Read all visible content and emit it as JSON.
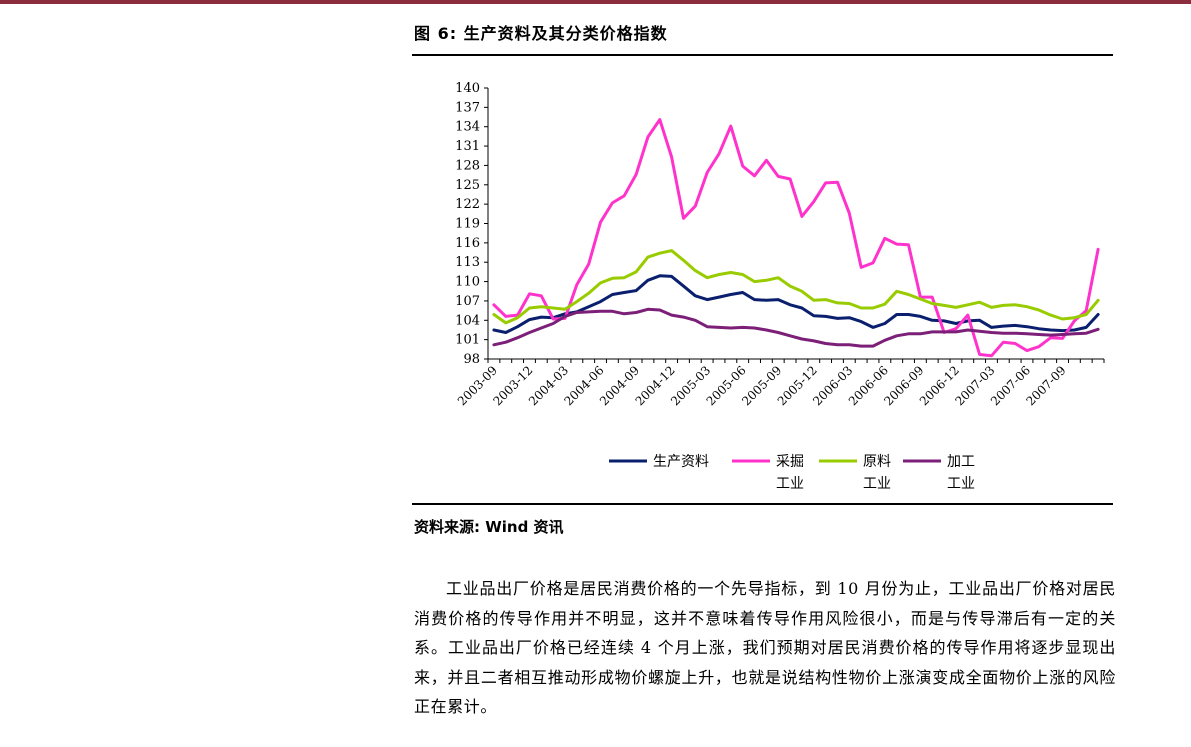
{
  "figure_title": "图 6: 生产资料及其分类价格指数",
  "source_line": "资料来源: Wind 资讯",
  "paragraph": "工业品出厂价格是居民消费价格的一个先导指标，到 10 月份为止，工业品出厂价格对居民消费价格的传导作用并不明显，这并不意味着传导作用风险很小，而是与传导滞后有一定的关系。工业品出厂价格已经连续 4 个月上涨，我们预期对居民消费价格的传导作用将逐步显现出来，并且二者相互推动形成物价螺旋上升，也就是说结构性物价上涨演变成全面物价上涨的风险正在累计。",
  "colors": {
    "top_rule": "#8b2d3c"
  },
  "chart_data": {
    "type": "line",
    "title": "",
    "xlabel": "",
    "ylabel": "",
    "ylim": [
      98,
      140
    ],
    "yticks": [
      98,
      101,
      104,
      107,
      110,
      113,
      116,
      119,
      122,
      125,
      128,
      131,
      134,
      137,
      140
    ],
    "x": [
      "2003-09",
      "2003-10",
      "2003-11",
      "2003-12",
      "2004-01",
      "2004-02",
      "2004-03",
      "2004-04",
      "2004-05",
      "2004-06",
      "2004-07",
      "2004-08",
      "2004-09",
      "2004-10",
      "2004-11",
      "2004-12",
      "2005-01",
      "2005-02",
      "2005-03",
      "2005-04",
      "2005-05",
      "2005-06",
      "2005-07",
      "2005-08",
      "2005-09",
      "2005-10",
      "2005-11",
      "2005-12",
      "2006-01",
      "2006-02",
      "2006-03",
      "2006-04",
      "2006-05",
      "2006-06",
      "2006-07",
      "2006-08",
      "2006-09",
      "2006-10",
      "2006-11",
      "2006-12",
      "2007-01",
      "2007-02",
      "2007-03",
      "2007-04",
      "2007-05",
      "2007-06",
      "2007-07",
      "2007-08",
      "2007-09",
      "2007-10",
      "2007-11",
      "2007-12"
    ],
    "xtick_labels": [
      "2003-09",
      "2003-12",
      "2004-03",
      "2004-06",
      "2004-09",
      "2004-12",
      "2005-03",
      "2005-06",
      "2005-09",
      "2005-12",
      "2006-03",
      "2006-06",
      "2006-09",
      "2006-12",
      "2007-03",
      "2007-06",
      "2007-09"
    ],
    "legend_position": "bottom",
    "grid": false,
    "series": [
      {
        "name": "生产资料",
        "legend_lines": [
          "生产资料"
        ],
        "color": "#0a1f6e",
        "values": [
          102.5,
          102.1,
          103.0,
          104.1,
          104.5,
          104.4,
          105.0,
          105.3,
          106.1,
          106.9,
          108.0,
          108.3,
          108.6,
          110.2,
          110.9,
          110.8,
          109.3,
          107.8,
          107.2,
          107.6,
          108.0,
          108.3,
          107.2,
          107.1,
          107.2,
          106.4,
          105.9,
          104.7,
          104.6,
          104.3,
          104.4,
          103.8,
          102.9,
          103.5,
          104.9,
          104.9,
          104.6,
          104.0,
          103.9,
          103.5,
          103.9,
          104.0,
          102.9,
          103.1,
          103.2,
          103.0,
          102.7,
          102.5,
          102.4,
          102.5,
          102.9,
          104.9
        ]
      },
      {
        "name": "采掘工业",
        "legend_lines": [
          "采掘",
          "工业"
        ],
        "color": "#ff33cc",
        "values": [
          106.4,
          104.6,
          104.8,
          108.1,
          107.8,
          104.2,
          104.3,
          109.5,
          112.7,
          119.2,
          122.2,
          123.3,
          126.6,
          132.4,
          135.1,
          129.3,
          119.8,
          121.7,
          126.9,
          129.8,
          134.1,
          127.9,
          126.4,
          128.8,
          126.3,
          125.9,
          120.1,
          122.4,
          125.3,
          125.4,
          120.6,
          112.2,
          112.9,
          116.7,
          115.8,
          115.7,
          107.6,
          107.6,
          102.1,
          102.7,
          104.8,
          98.7,
          98.5,
          100.6,
          100.4,
          99.3,
          99.9,
          101.3,
          101.2,
          103.9,
          105.5,
          115.0
        ]
      },
      {
        "name": "原料工业",
        "legend_lines": [
          "原料",
          "工业"
        ],
        "color": "#99cc00",
        "values": [
          104.9,
          103.6,
          104.4,
          105.9,
          106.1,
          105.9,
          105.7,
          106.9,
          108.2,
          109.8,
          110.5,
          110.6,
          111.5,
          113.8,
          114.4,
          114.8,
          113.3,
          111.7,
          110.6,
          111.1,
          111.4,
          111.1,
          110.0,
          110.2,
          110.6,
          109.3,
          108.5,
          107.1,
          107.2,
          106.7,
          106.6,
          105.9,
          105.9,
          106.5,
          108.5,
          108.0,
          107.3,
          106.6,
          106.3,
          106.0,
          106.4,
          106.8,
          106.0,
          106.3,
          106.4,
          106.1,
          105.6,
          104.8,
          104.2,
          104.4,
          104.9,
          107.1
        ]
      },
      {
        "name": "加工工业",
        "legend_lines": [
          "加工",
          "工业"
        ],
        "color": "#7b1f78",
        "values": [
          100.2,
          100.6,
          101.3,
          102.1,
          102.8,
          103.5,
          104.6,
          105.2,
          105.3,
          105.4,
          105.4,
          105.0,
          105.2,
          105.7,
          105.6,
          104.8,
          104.5,
          104.0,
          103.0,
          102.9,
          102.8,
          102.9,
          102.8,
          102.5,
          102.1,
          101.6,
          101.1,
          100.8,
          100.4,
          100.2,
          100.2,
          100.0,
          100.0,
          100.9,
          101.6,
          101.9,
          101.9,
          102.2,
          102.2,
          102.2,
          102.5,
          102.3,
          102.1,
          102.0,
          102.0,
          101.9,
          101.8,
          101.7,
          101.8,
          101.9,
          102.0,
          102.6
        ]
      }
    ]
  }
}
